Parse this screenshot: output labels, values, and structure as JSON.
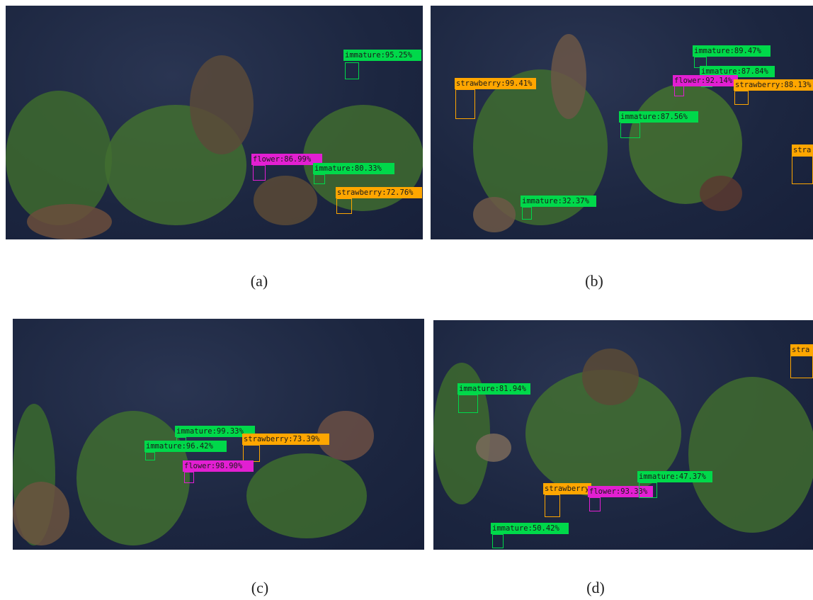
{
  "panels": [
    {
      "caption": "(a)",
      "detections": [
        "immature:95.25%",
        "flower:86.99%",
        "immature:80.33%",
        "strawberry:72.76%"
      ]
    },
    {
      "caption": "(b)",
      "detections": [
        "strawberry:99.41%",
        "immature:89.47%",
        "immature:87.84%",
        "flower:92.14%",
        "strawberry:88.13%",
        "immature:87.56%",
        "immature:32.37%",
        "stra"
      ]
    },
    {
      "caption": "(c)",
      "detections": [
        "immature:99.33%",
        "immature:96.42%",
        "strawberry:73.39%",
        "flower:98.90%"
      ]
    },
    {
      "caption": "(d)",
      "detections": [
        "immature:81.94%",
        "stra",
        "strawberry",
        "flower:93.33%",
        "immature:47.37%",
        "immature:50.42%"
      ]
    }
  ]
}
